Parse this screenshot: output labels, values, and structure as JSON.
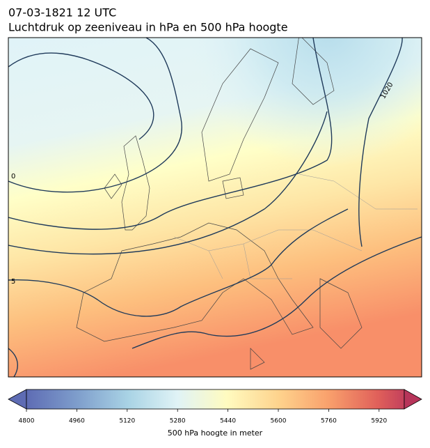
{
  "header": {
    "date": "07-03-1821 12 UTC",
    "title": "Luchtdruk op zeeniveau in hPa en 500 hPa hoogte"
  },
  "map": {
    "contour_labels": [
      "1020",
      "0",
      "5"
    ]
  },
  "colorbar": {
    "lim": [
      4800,
      6000
    ],
    "ticks": [
      4800,
      4960,
      5120,
      5280,
      5440,
      5600,
      5760,
      5920
    ],
    "label": "500 hPa hoogte in meter"
  }
}
